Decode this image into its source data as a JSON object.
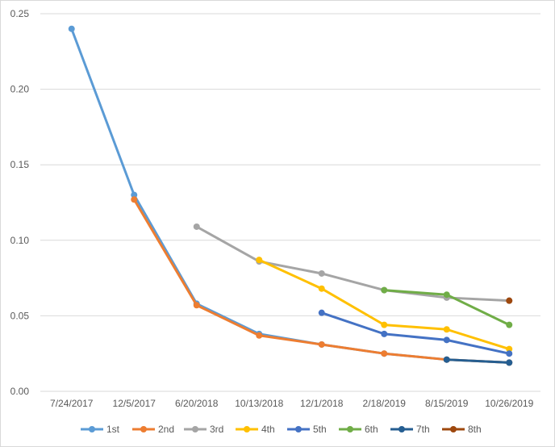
{
  "chart_data": {
    "type": "line",
    "title": "",
    "xlabel": "",
    "ylabel": "",
    "categories": [
      "7/24/2017",
      "12/5/2017",
      "6/20/2018",
      "10/13/2018",
      "12/1/2018",
      "2/18/2019",
      "8/15/2019",
      "10/26/2019"
    ],
    "ylim": [
      0,
      0.25
    ],
    "yticks": [
      "0.00",
      "0.05",
      "0.10",
      "0.15",
      "0.20",
      "0.25"
    ],
    "grid": true,
    "legend_position": "bottom",
    "series": [
      {
        "name": "1st",
        "color": "#5b9bd5",
        "values": [
          0.24,
          0.13,
          0.058,
          0.038,
          0.031,
          0.025,
          0.021,
          0.019
        ]
      },
      {
        "name": "2nd",
        "color": "#ed7d31",
        "values": [
          null,
          0.127,
          0.057,
          0.037,
          0.031,
          0.025,
          0.021,
          0.019
        ]
      },
      {
        "name": "3rd",
        "color": "#a5a5a5",
        "values": [
          null,
          null,
          0.109,
          0.086,
          0.078,
          0.067,
          0.062,
          0.06
        ]
      },
      {
        "name": "4th",
        "color": "#ffc000",
        "values": [
          null,
          null,
          null,
          0.087,
          0.068,
          0.044,
          0.041,
          0.028
        ]
      },
      {
        "name": "5th",
        "color": "#4472c4",
        "values": [
          null,
          null,
          null,
          null,
          0.052,
          0.038,
          0.034,
          0.025
        ]
      },
      {
        "name": "6th",
        "color": "#70ad47",
        "values": [
          null,
          null,
          null,
          null,
          null,
          0.067,
          0.064,
          0.044
        ]
      },
      {
        "name": "7th",
        "color": "#255e91",
        "values": [
          null,
          null,
          null,
          null,
          null,
          null,
          0.021,
          0.019
        ]
      },
      {
        "name": "8th",
        "color": "#9e480e",
        "values": [
          null,
          null,
          null,
          null,
          null,
          null,
          null,
          0.06
        ]
      }
    ]
  }
}
